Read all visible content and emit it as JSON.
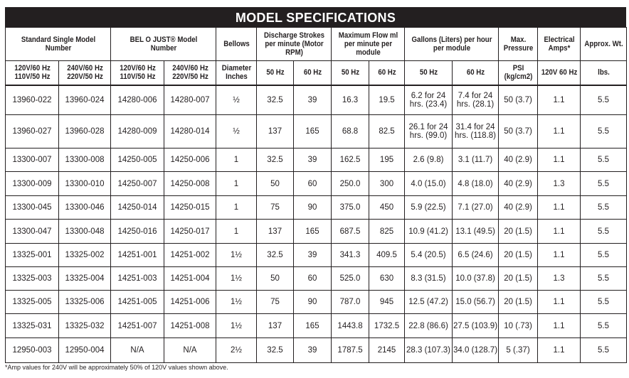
{
  "title": "MODEL SPECIFICATIONS",
  "headers": [
    "Standard Single Model Number",
    "BEL O JUST® Model Number",
    "Bellows",
    "Discharge Strokes per minute (Motor RPM)",
    "Maximum Flow ml per minute per module",
    "Gallons (Liters) per hour per module",
    "Max. Pressure",
    "Electrical Amps*",
    "Approx. Wt."
  ],
  "subheaders": [
    "120V/60 Hz 110V/50 Hz",
    "240V/60 Hz 220V/50 Hz",
    "120V/60 Hz 110V/50 Hz",
    "240V/60 Hz 220V/50 Hz",
    "Diameter Inches",
    "50 Hz",
    "60 Hz",
    "50 Hz",
    "60 Hz",
    "50 Hz",
    "60 Hz",
    "PSI (kg/cm2)",
    "120V 60 Hz",
    "lbs."
  ],
  "rows": [
    [
      "13960-022",
      "13960-024",
      "14280-006",
      "14280-007",
      "½",
      "32.5",
      "39",
      "16.3",
      "19.5",
      "6.2 for 24 hrs. (23.4)",
      "7.4 for 24 hrs. (28.1)",
      "50 (3.7)",
      "1.1",
      "5.5"
    ],
    [
      "13960-027",
      "13960-028",
      "14280-009",
      "14280-014",
      "½",
      "137",
      "165",
      "68.8",
      "82.5",
      "26.1 for 24 hrs. (99.0)",
      "31.4 for 24 hrs. (118.8)",
      "50 (3.7)",
      "1.1",
      "5.5"
    ],
    [
      "13300-007",
      "13300-008",
      "14250-005",
      "14250-006",
      "1",
      "32.5",
      "39",
      "162.5",
      "195",
      "2.6 (9.8)",
      "3.1 (11.7)",
      "40 (2.9)",
      "1.1",
      "5.5"
    ],
    [
      "13300-009",
      "13300-010",
      "14250-007",
      "14250-008",
      "1",
      "50",
      "60",
      "250.0",
      "300",
      "4.0 (15.0)",
      "4.8 (18.0)",
      "40 (2.9)",
      "1.3",
      "5.5"
    ],
    [
      "13300-045",
      "13300-046",
      "14250-014",
      "14250-015",
      "1",
      "75",
      "90",
      "375.0",
      "450",
      "5.9 (22.5)",
      "7.1 (27.0)",
      "40 (2.9)",
      "1.1",
      "5.5"
    ],
    [
      "13300-047",
      "13300-048",
      "14250-016",
      "14250-017",
      "1",
      "137",
      "165",
      "687.5",
      "825",
      "10.9 (41.2)",
      "13.1 (49.5)",
      "20 (1.5)",
      "1.1",
      "5.5"
    ],
    [
      "13325-001",
      "13325-002",
      "14251-001",
      "14251-002",
      "1½",
      "32.5",
      "39",
      "341.3",
      "409.5",
      "5.4 (20.5)",
      "6.5 (24.6)",
      "20 (1.5)",
      "1.1",
      "5.5"
    ],
    [
      "13325-003",
      "13325-004",
      "14251-003",
      "14251-004",
      "1½",
      "50",
      "60",
      "525.0",
      "630",
      "8.3 (31.5)",
      "10.0 (37.8)",
      "20 (1.5)",
      "1.3",
      "5.5"
    ],
    [
      "13325-005",
      "13325-006",
      "14251-005",
      "14251-006",
      "1½",
      "75",
      "90",
      "787.0",
      "945",
      "12.5 (47.2)",
      "15.0 (56.7)",
      "20 (1.5)",
      "1.1",
      "5.5"
    ],
    [
      "13325-031",
      "13325-032",
      "14251-007",
      "14251-008",
      "1½",
      "137",
      "165",
      "1443.8",
      "1732.5",
      "22.8 (86.6)",
      "27.5 (103.9)",
      "10 (.73)",
      "1.1",
      "5.5"
    ],
    [
      "12950-003",
      "12950-004",
      "N/A",
      "N/A",
      "2½",
      "32.5",
      "39",
      "1787.5",
      "2145",
      "28.3 (107.3)",
      "34.0 (128.7)",
      "5 (.37)",
      "1.1",
      "5.5"
    ]
  ],
  "footnote": "*Amp values for 240V will be approximately 50% of 120V values shown above."
}
